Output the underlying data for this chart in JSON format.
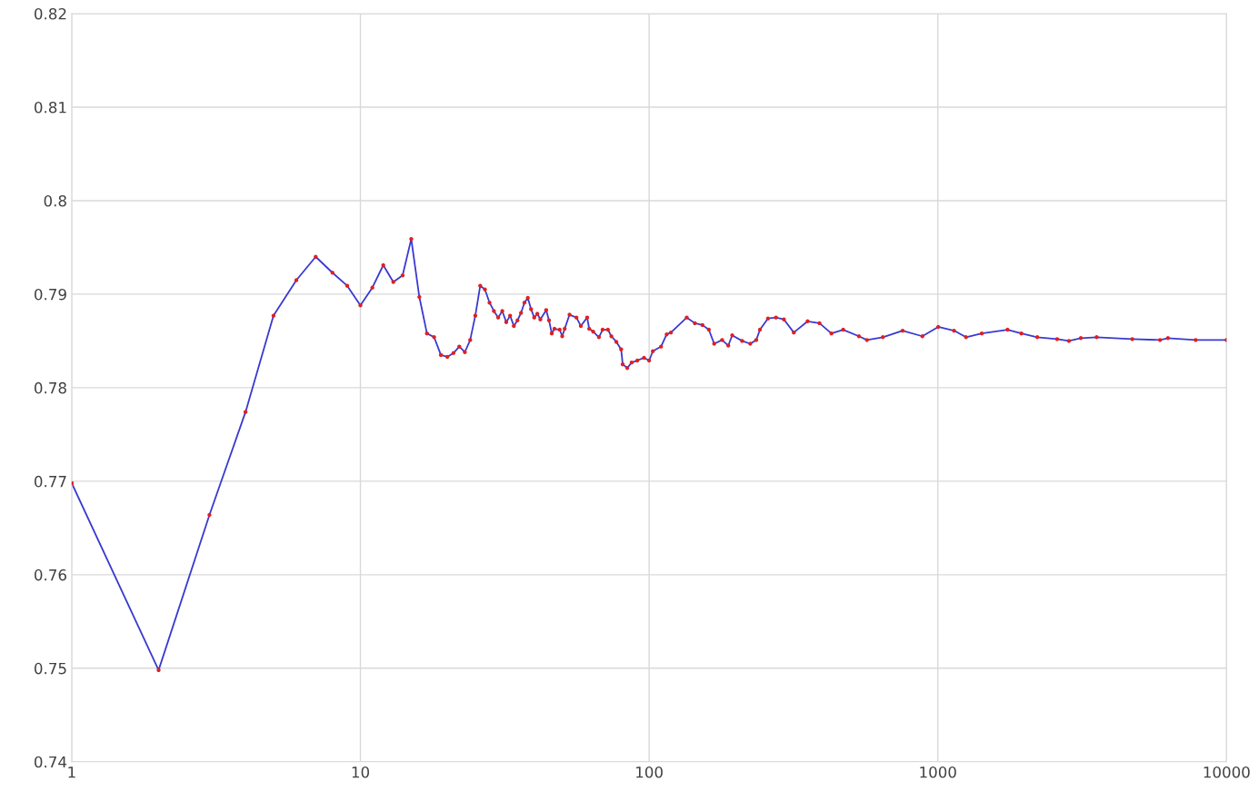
{
  "chart_data": {
    "type": "line",
    "log": "x",
    "grid": true,
    "legend": false,
    "xlim": [
      1,
      10000
    ],
    "xticks": [
      1,
      10,
      100,
      1000,
      10000
    ],
    "ylim": [
      0.74,
      0.82
    ],
    "yticks": [
      0.74,
      0.75,
      0.76,
      0.77,
      0.78,
      0.79,
      0.8,
      0.81,
      0.82
    ],
    "x": [
      1,
      2,
      3,
      4,
      5,
      6,
      7,
      8,
      9,
      10,
      11,
      12,
      13,
      14,
      15,
      16,
      17,
      18,
      19,
      20,
      21,
      22,
      23,
      24,
      25,
      26,
      27,
      28,
      29,
      30,
      31,
      32,
      33,
      34,
      35,
      36,
      37,
      38,
      39,
      40,
      41,
      42,
      44,
      45,
      46,
      47,
      49,
      50,
      51,
      53,
      56,
      58,
      61,
      62,
      64,
      67,
      69,
      72,
      74,
      77,
      80,
      81,
      84,
      87,
      91,
      96,
      100,
      103,
      110,
      115,
      119,
      135,
      144,
      153,
      161,
      168,
      179,
      188,
      194,
      210,
      224,
      235,
      242,
      258,
      275,
      293,
      317,
      354,
      389,
      428,
      470,
      533,
      568,
      645,
      755,
      884,
      1003,
      1138,
      1252,
      1420,
      1743,
      1947,
      2210,
      2588,
      2844,
      3128,
      3549,
      4716,
      5883,
      6266,
      7816,
      10000
    ],
    "series": [
      {
        "color": "#3a3ad0",
        "marker": "none",
        "line_style": "solid",
        "values": [
          0.7698,
          0.7498,
          0.7664,
          0.7774,
          0.7877,
          0.7915,
          0.794,
          0.7923,
          0.7909,
          0.7888,
          0.7907,
          0.7931,
          0.7913,
          0.792,
          0.7959,
          0.7897,
          0.7858,
          0.7854,
          0.7835,
          0.7833,
          0.7837,
          0.7844,
          0.7838,
          0.7851,
          0.7877,
          0.7909,
          0.7905,
          0.7891,
          0.7882,
          0.7875,
          0.7882,
          0.787,
          0.7877,
          0.7866,
          0.7872,
          0.788,
          0.7891,
          0.7896,
          0.7884,
          0.7875,
          0.7879,
          0.7873,
          0.7883,
          0.7872,
          0.7858,
          0.7863,
          0.7862,
          0.7855,
          0.7863,
          0.7878,
          0.7875,
          0.7866,
          0.7875,
          0.7863,
          0.786,
          0.7854,
          0.7862,
          0.7862,
          0.7855,
          0.7849,
          0.7841,
          0.7825,
          0.7821,
          0.7827,
          0.7829,
          0.7832,
          0.7829,
          0.7839,
          0.7844,
          0.7857,
          0.7859,
          0.7875,
          0.7869,
          0.7867,
          0.7862,
          0.7847,
          0.7851,
          0.7845,
          0.7856,
          0.785,
          0.7847,
          0.7851,
          0.7862,
          0.7874,
          0.7875,
          0.7873,
          0.7859,
          0.7871,
          0.7869,
          0.7858,
          0.7862,
          0.7855,
          0.7851,
          0.7854,
          0.7861,
          0.7855,
          0.7865,
          0.7861,
          0.7854,
          0.7858,
          0.7862,
          0.7858,
          0.7854,
          0.7852,
          0.785,
          0.7853,
          0.7854,
          0.7852,
          0.7851,
          0.7853,
          0.7851,
          0.7851
        ]
      },
      {
        "type": "scatter",
        "color": "#e02020",
        "marker": "circle",
        "values": [
          0.7698,
          0.7498,
          0.7664,
          0.7774,
          0.7877,
          0.7915,
          0.794,
          0.7923,
          0.7909,
          0.7888,
          0.7907,
          0.7931,
          0.7913,
          0.792,
          0.7959,
          0.7897,
          0.7858,
          0.7854,
          0.7835,
          0.7833,
          0.7837,
          0.7844,
          0.7838,
          0.7851,
          0.7877,
          0.7909,
          0.7905,
          0.7891,
          0.7882,
          0.7875,
          0.7882,
          0.787,
          0.7877,
          0.7866,
          0.7872,
          0.788,
          0.7891,
          0.7896,
          0.7884,
          0.7875,
          0.7879,
          0.7873,
          0.7883,
          0.7872,
          0.7858,
          0.7863,
          0.7862,
          0.7855,
          0.7863,
          0.7878,
          0.7875,
          0.7866,
          0.7875,
          0.7863,
          0.786,
          0.7854,
          0.7862,
          0.7862,
          0.7855,
          0.7849,
          0.7841,
          0.7825,
          0.7821,
          0.7827,
          0.7829,
          0.7832,
          0.7829,
          0.7839,
          0.7844,
          0.7857,
          0.7859,
          0.7875,
          0.7869,
          0.7867,
          0.7862,
          0.7847,
          0.7851,
          0.7845,
          0.7856,
          0.785,
          0.7847,
          0.7851,
          0.7862,
          0.7874,
          0.7875,
          0.7873,
          0.7859,
          0.7871,
          0.7869,
          0.7858,
          0.7862,
          0.7855,
          0.7851,
          0.7854,
          0.7861,
          0.7855,
          0.7865,
          0.7861,
          0.7854,
          0.7858,
          0.7862,
          0.7858,
          0.7854,
          0.7852,
          0.785,
          0.7853,
          0.7854,
          0.7852,
          0.7851,
          0.7853,
          0.7851,
          0.7851
        ]
      }
    ]
  }
}
